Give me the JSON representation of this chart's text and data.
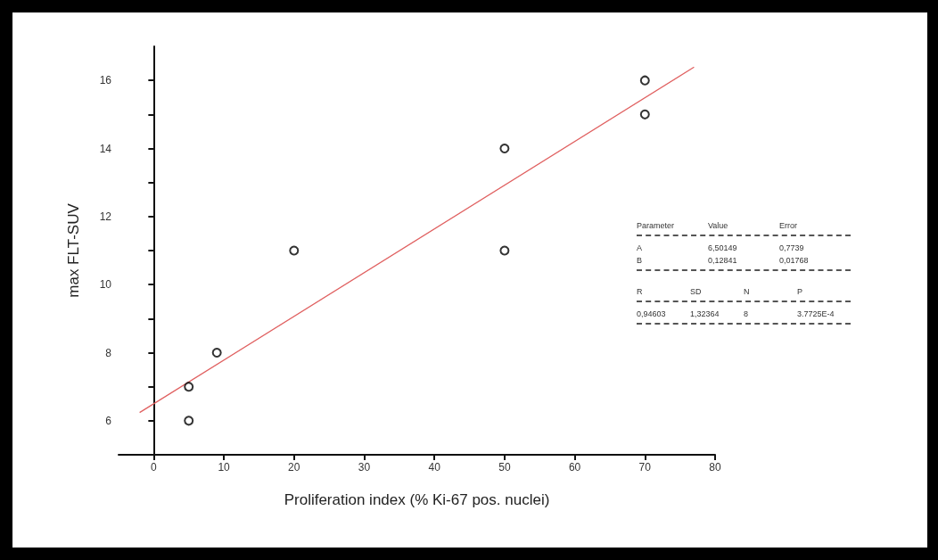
{
  "chart_data": {
    "type": "scatter",
    "xlabel": "Proliferation index (% Ki-67 pos. nuclei)",
    "ylabel": "max FLT-SUV",
    "xlim": [
      -5,
      80
    ],
    "xticks": [
      0,
      10,
      20,
      30,
      40,
      50,
      60,
      70,
      80
    ],
    "ylim": [
      5,
      17
    ],
    "yticks": [
      6,
      8,
      10,
      12,
      14,
      16
    ],
    "series": [
      {
        "color": "#000000",
        "marker": "circle",
        "x": [
          5,
          5,
          9,
          20,
          50,
          50,
          70,
          70
        ],
        "values": [
          6,
          7,
          8,
          11,
          11,
          14,
          15,
          16
        ]
      },
      {
        "type": "line",
        "color": "#e06060",
        "marker": "none",
        "line_style": "solid",
        "x": [
          -2,
          77
        ],
        "values": [
          6.24,
          16.39
        ]
      }
    ],
    "annotations": [
      "Parameter",
      "Value",
      "Error",
      "A",
      "6,50149",
      "0,7739",
      "B",
      "0,12841",
      "0,01768",
      "R",
      "SD",
      "N",
      "P",
      "0,94603",
      "1,32364",
      "8",
      "3.7725E-4"
    ]
  }
}
